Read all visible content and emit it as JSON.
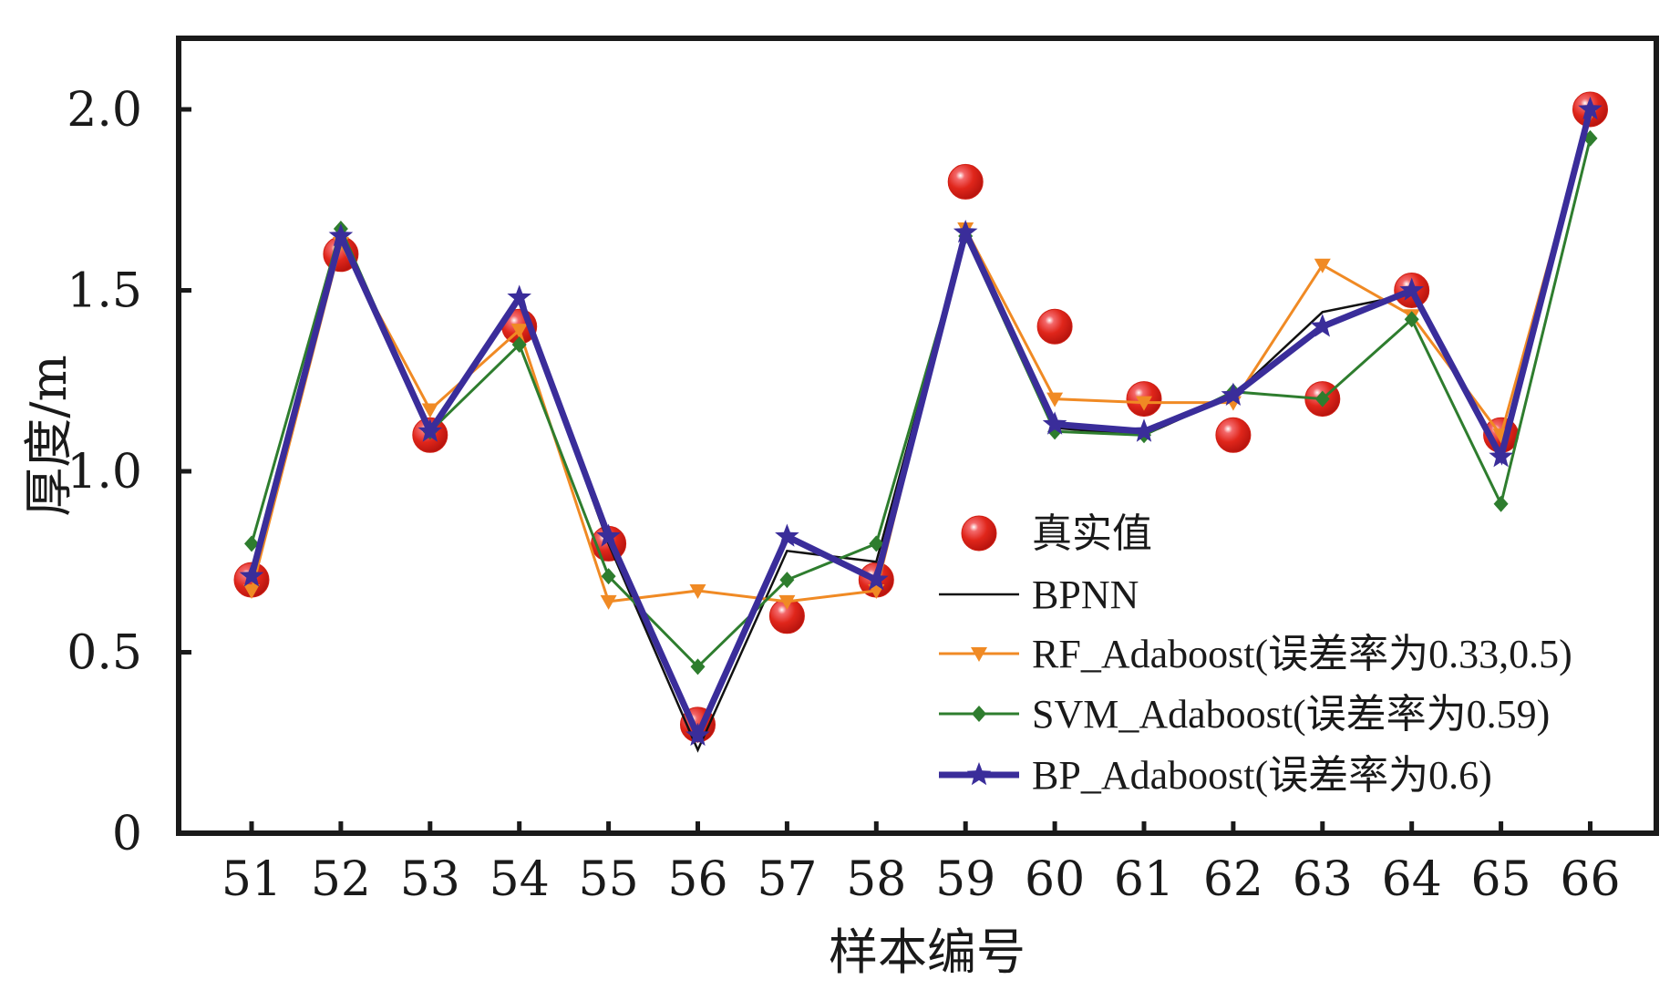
{
  "chart_data": {
    "type": "line",
    "title": "",
    "xlabel": "样本编号",
    "ylabel": "厚度/m",
    "x": [
      51,
      52,
      53,
      54,
      55,
      56,
      57,
      58,
      59,
      60,
      61,
      62,
      63,
      64,
      65,
      66
    ],
    "xlim": [
      50.5,
      66.5
    ],
    "ylim": [
      0,
      2.2
    ],
    "yticks": [
      0,
      0.5,
      1.0,
      1.5,
      2.0
    ],
    "ytick_labels": [
      "0",
      "0.5",
      "1.0",
      "1.5",
      "2.0"
    ],
    "xtick_labels": [
      "51",
      "52",
      "53",
      "54",
      "55",
      "56",
      "57",
      "58",
      "59",
      "60",
      "61",
      "62",
      "63",
      "64",
      "65",
      "66"
    ],
    "grid": false,
    "legend_position": "lower-right",
    "series": [
      {
        "name": "真实值",
        "kind": "scatter",
        "marker": "sphere",
        "color": "#e0261b",
        "values": [
          0.7,
          1.6,
          1.1,
          1.4,
          0.8,
          0.3,
          0.6,
          0.7,
          1.8,
          1.4,
          1.2,
          1.1,
          1.2,
          1.5,
          1.1,
          2.0
        ]
      },
      {
        "name": "BPNN",
        "kind": "line",
        "marker": "none",
        "color": "#111111",
        "values": [
          0.71,
          1.65,
          1.12,
          1.48,
          0.8,
          0.23,
          0.78,
          0.75,
          1.66,
          1.12,
          1.1,
          1.21,
          1.44,
          1.49,
          1.04,
          2.0
        ]
      },
      {
        "name": "RF_Adaboost(误差率为0.33,0.5)",
        "kind": "line",
        "marker": "triangle-down",
        "color": "#f08a24",
        "values": [
          0.67,
          1.63,
          1.17,
          1.39,
          0.64,
          0.67,
          0.64,
          0.67,
          1.67,
          1.2,
          1.19,
          1.19,
          1.57,
          1.43,
          1.1,
          1.99
        ]
      },
      {
        "name": "SVM_Adaboost(误差率为0.59)",
        "kind": "line",
        "marker": "diamond",
        "color": "#2e7d2e",
        "values": [
          0.8,
          1.67,
          1.11,
          1.35,
          0.71,
          0.46,
          0.7,
          0.8,
          1.65,
          1.11,
          1.1,
          1.22,
          1.2,
          1.42,
          0.91,
          1.92
        ]
      },
      {
        "name": "BP_Adaboost(误差率为0.6)",
        "kind": "line",
        "marker": "star",
        "color": "#3a2d9a",
        "values": [
          0.71,
          1.65,
          1.11,
          1.48,
          0.82,
          0.27,
          0.82,
          0.7,
          1.66,
          1.13,
          1.11,
          1.21,
          1.4,
          1.5,
          1.04,
          2.0
        ]
      }
    ]
  }
}
